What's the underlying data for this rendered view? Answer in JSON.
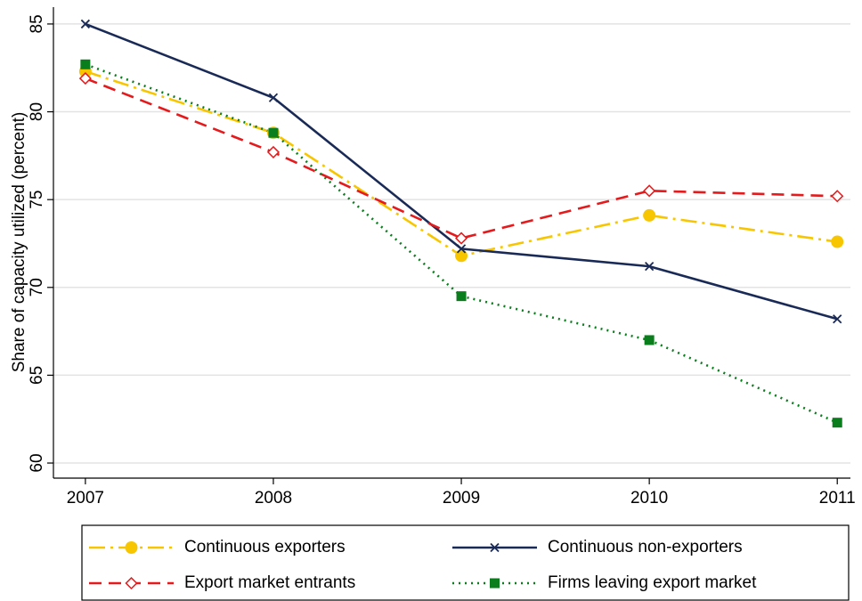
{
  "chart_data": {
    "type": "line",
    "y_label": "Share of capacity utilized (percent)",
    "x": [
      2007,
      2008,
      2009,
      2010,
      2011
    ],
    "xlim": [
      2006.83,
      2011.07
    ],
    "xticks": [
      2007,
      2008,
      2009,
      2010,
      2011
    ],
    "ylim": [
      59.14,
      85.96
    ],
    "yticks": [
      60,
      65,
      70,
      75,
      80,
      85
    ],
    "grid": true,
    "legend": "bottom",
    "series": [
      {
        "name": "Continuous exporters",
        "color": "#f7c600",
        "line_style": "dashdot",
        "marker": "circle",
        "values": [
          82.3,
          78.8,
          71.8,
          74.1,
          72.6
        ]
      },
      {
        "name": "Continuous non-exporters",
        "color": "#1a2a57",
        "line_style": "solid",
        "marker": "x",
        "values": [
          85.0,
          80.8,
          72.2,
          71.2,
          68.2
        ]
      },
      {
        "name": "Export market entrants",
        "color": "#e41a1c",
        "line_style": "dashed",
        "marker": "diamond",
        "values": [
          81.9,
          77.7,
          72.8,
          75.5,
          75.2
        ]
      },
      {
        "name": "Firms leaving export market",
        "color": "#0a7d1c",
        "line_style": "dotted",
        "marker": "square",
        "values": [
          82.7,
          78.8,
          69.5,
          67.0,
          62.3
        ]
      }
    ]
  }
}
